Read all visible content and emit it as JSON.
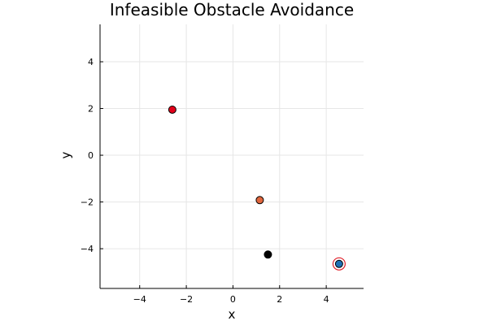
{
  "chart_data": {
    "type": "scatter",
    "title": "Infeasible Obstacle Avoidance",
    "xlabel": "x",
    "ylabel": "y",
    "xlim": [
      -5.7,
      5.6
    ],
    "ylim": [
      -5.7,
      5.6
    ],
    "xticks": [
      -4,
      -2,
      0,
      2,
      4
    ],
    "yticks": [
      -4,
      -2,
      0,
      2,
      4
    ],
    "xtick_labels": [
      "−4",
      "−2",
      "0",
      "2",
      "4"
    ],
    "ytick_labels": [
      "−4",
      "−2",
      "0",
      "2",
      "4"
    ],
    "grid": true,
    "legend": "none",
    "points": [
      {
        "x": -2.6,
        "y": 1.95,
        "color": "#e2001a",
        "ring": false
      },
      {
        "x": 1.15,
        "y": -1.92,
        "color": "#e0663d",
        "ring": false
      },
      {
        "x": 1.5,
        "y": -4.25,
        "color": "#000000",
        "ring": false
      },
      {
        "x": 4.55,
        "y": -4.65,
        "color": "#1f6fb4",
        "ring": true,
        "ring_color": "#e0202a"
      }
    ]
  }
}
